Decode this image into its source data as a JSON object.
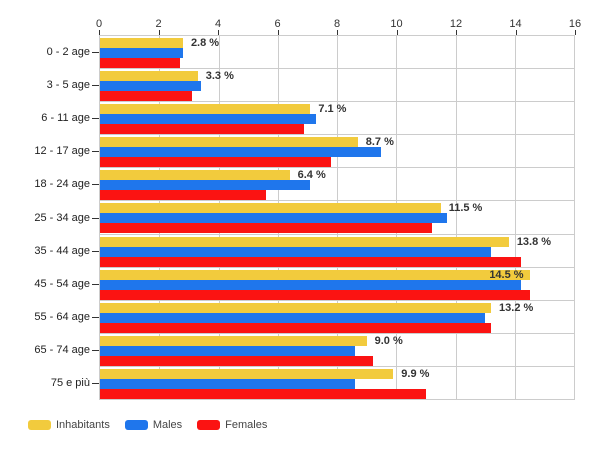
{
  "chart_data": {
    "type": "bar",
    "orientation": "horizontal",
    "title": "",
    "xlabel": "",
    "ylabel": "",
    "xlim": [
      0,
      16
    ],
    "x_ticks": [
      0,
      2,
      4,
      6,
      8,
      10,
      12,
      14,
      16
    ],
    "grid": true,
    "legend_position": "bottom",
    "categories": [
      "0 - 2 age",
      "3 - 5 age",
      "6 - 11 age",
      "12 - 17 age",
      "18 - 24 age",
      "25 - 34 age",
      "35 - 44 age",
      "45 - 54 age",
      "55 - 64 age",
      "65 - 74 age",
      "75 e più"
    ],
    "series": [
      {
        "name": "Inhabitants",
        "color": "#F2CB3D",
        "values": [
          2.8,
          3.3,
          7.1,
          8.7,
          6.4,
          11.5,
          13.8,
          14.5,
          13.2,
          9.0,
          9.9
        ]
      },
      {
        "name": "Males",
        "color": "#1F76EC",
        "values": [
          2.8,
          3.4,
          7.3,
          9.5,
          7.1,
          11.7,
          13.2,
          14.2,
          13.0,
          8.6,
          8.6
        ]
      },
      {
        "name": "Females",
        "color": "#FB1312",
        "values": [
          2.7,
          3.1,
          6.9,
          7.8,
          5.6,
          11.2,
          14.2,
          14.5,
          13.2,
          9.2,
          11.0
        ]
      }
    ],
    "data_labels": [
      "2.8 %",
      "3.3 %",
      "7.1 %",
      "8.7 %",
      "6.4 %",
      "11.5 %",
      "13.8 %",
      "14.5 %",
      "13.2 %",
      "9.0 %",
      "9.9 %"
    ],
    "data_labels_inside": [
      false,
      false,
      false,
      false,
      false,
      false,
      false,
      true,
      false,
      false,
      false
    ]
  },
  "legend": {
    "items": [
      {
        "label": "Inhabitants",
        "color": "#F2CB3D"
      },
      {
        "label": "Males",
        "color": "#1F76EC"
      },
      {
        "label": "Females",
        "color": "#FB1312"
      }
    ]
  },
  "colors": {
    "grid": "#CCCCCC",
    "axis_text": "#333333",
    "background": "#FFFFFF"
  }
}
